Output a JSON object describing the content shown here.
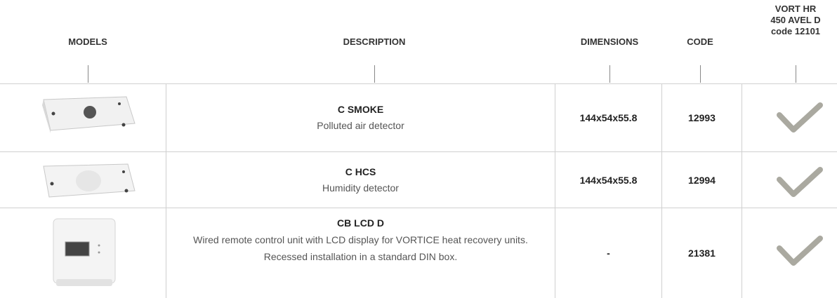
{
  "header": {
    "columns": [
      "MODELS",
      "DESCRIPTION",
      "DIMENSIONS",
      "CODE",
      [
        "VORT HR",
        "450 AVEL D",
        "code 12101"
      ]
    ]
  },
  "rows": [
    {
      "name": "C SMOKE",
      "description": [
        "Polluted air detector"
      ],
      "dimensions": "144x54x55.8",
      "code": "12993"
    },
    {
      "name": "C HCS",
      "description": [
        "Humidity detector"
      ],
      "dimensions": "144x54x55.8",
      "code": "12994"
    },
    {
      "name": "CB LCD D",
      "description": [
        "Wired remote control unit with LCD display for VORTICE heat recovery units.",
        "Recessed installation in a standard DIN box."
      ],
      "dimensions": "-",
      "code": "21381"
    }
  ]
}
